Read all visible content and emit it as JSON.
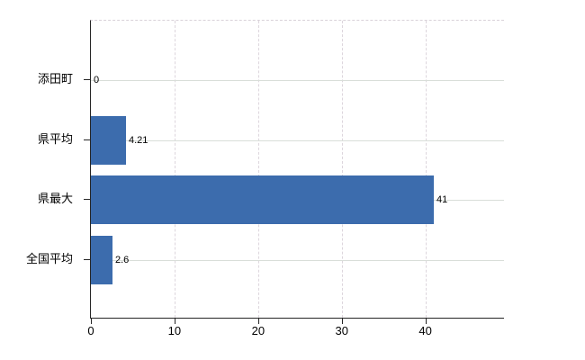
{
  "chart_data": {
    "type": "bar",
    "orientation": "horizontal",
    "title": "",
    "xlabel": "",
    "ylabel": "",
    "categories": [
      "添田町",
      "県平均",
      "県最大",
      "全国平均"
    ],
    "values": [
      0,
      4.21,
      41,
      2.6
    ],
    "value_labels": [
      "0",
      "4.21",
      "41",
      "2.6"
    ],
    "x_ticks": [
      0,
      10,
      20,
      30,
      40
    ],
    "x_tick_labels": [
      "0",
      "10",
      "20",
      "30",
      "40"
    ],
    "xlim": [
      0,
      49.4
    ],
    "grid": true,
    "legend": "none",
    "colors": {
      "bar": "#3c6cad",
      "axis": "#262626",
      "h_gridline": "#d9ded9",
      "v_gridline": "#ddd6dd",
      "text": "#000000",
      "background": "#ffffff"
    }
  }
}
